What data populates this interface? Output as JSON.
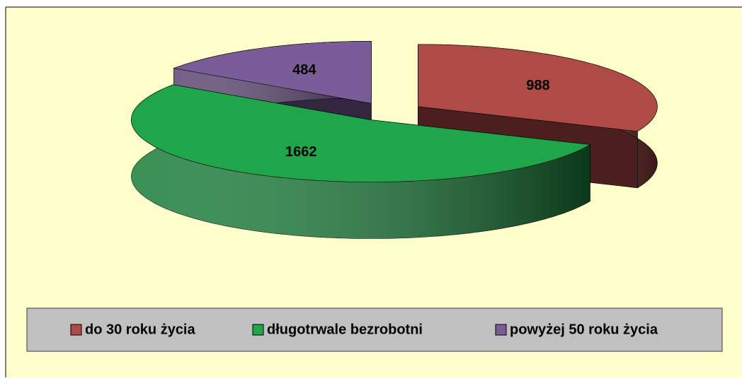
{
  "chart_data": {
    "type": "pie",
    "three_d": true,
    "exploded": true,
    "categories": [
      "do 30 roku życia",
      "długotrwale bezrobotni",
      "powyżej 50 roku życia"
    ],
    "values": [
      988,
      1662,
      484
    ],
    "colors": [
      "#b04a47",
      "#1fa64a",
      "#7a5c98"
    ],
    "legend": "bottom"
  }
}
